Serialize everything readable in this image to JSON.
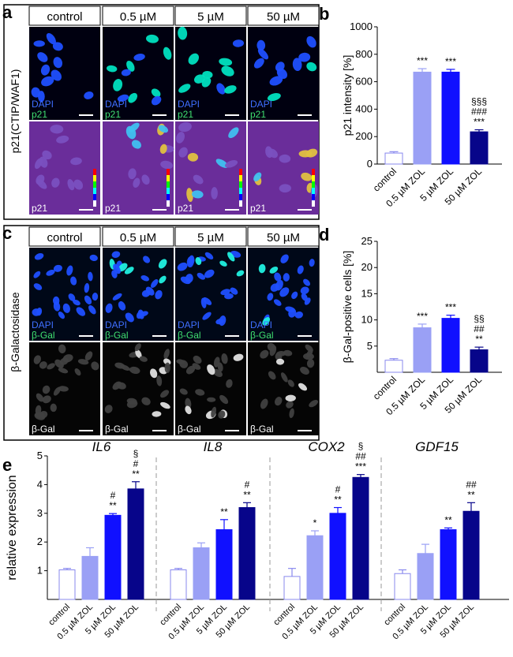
{
  "panel_letters": {
    "a": "a",
    "b": "b",
    "c": "c",
    "d": "d",
    "e": "e"
  },
  "micrographs": {
    "column_headers": [
      "control",
      "0.5 µM",
      "5 µM",
      "50 µM"
    ],
    "a": {
      "row_label": "p21(CTIP/WAF1)",
      "top_labels": {
        "line1": "DAPI",
        "line2": "p21"
      },
      "bottom_label": "p21"
    },
    "c": {
      "row_label": "β-Galactosidase",
      "top_labels": {
        "line1": "DAPI",
        "line2": "β-Gal"
      },
      "bottom_label": "β-Gal"
    },
    "colors": {
      "dapi": "#1f4fff",
      "p21": "#00e0c0",
      "heatmap_bg": "#6a2d9a",
      "gal": "#38d060"
    }
  },
  "chart_data": [
    {
      "id": "b",
      "type": "bar",
      "title": "",
      "xlabel": "",
      "ylabel": "p21 intensity [%]",
      "ylim": [
        0,
        1000
      ],
      "yticks": [
        "0",
        "200",
        "400",
        "600",
        "800",
        "1000"
      ],
      "categories": [
        "control",
        "0.5 µM ZOL",
        "5 µM ZOL",
        "50 µM ZOL"
      ],
      "values": [
        80,
        670,
        670,
        235
      ],
      "errors": [
        10,
        25,
        20,
        15
      ],
      "annotations": [
        [
          ""
        ],
        [
          "***"
        ],
        [
          "***"
        ],
        [
          "§§§",
          "###",
          "***"
        ]
      ],
      "grid": false
    },
    {
      "id": "d",
      "type": "bar",
      "title": "",
      "xlabel": "",
      "ylabel": "β-Gal-positive cells [%]",
      "ylim": [
        0,
        25
      ],
      "yticks": [
        "5",
        "10",
        "15",
        "20",
        "25"
      ],
      "categories": [
        "control",
        "0.5 µM ZOL",
        "5 µM ZOL",
        "50 µM ZOL"
      ],
      "values": [
        2.3,
        8.5,
        10.3,
        4.3
      ],
      "errors": [
        0.3,
        0.7,
        0.6,
        0.5
      ],
      "annotations": [
        [
          ""
        ],
        [
          "***"
        ],
        [
          "***"
        ],
        [
          "§§",
          "##",
          "**"
        ]
      ],
      "grid": false
    },
    {
      "id": "e",
      "type": "bar",
      "title": "",
      "xlabel": "",
      "ylabel": "relative expression",
      "ylim": [
        0,
        5
      ],
      "yticks": [
        "1",
        "2",
        "3",
        "4",
        "5"
      ],
      "groups": [
        {
          "name": "IL6",
          "categories": [
            "control",
            "0.5 µM ZOL",
            "5 µM ZOL",
            "50 µM ZOL"
          ],
          "values": [
            1.03,
            1.5,
            2.93,
            3.85
          ],
          "errors": [
            0.05,
            0.3,
            0.06,
            0.25
          ],
          "annotations": [
            [
              ""
            ],
            [
              ""
            ],
            [
              "#",
              "**"
            ],
            [
              "§",
              "#",
              "**"
            ]
          ]
        },
        {
          "name": "IL8",
          "categories": [
            "control",
            "0.5 µM ZOL",
            "5 µM ZOL",
            "50 µM ZOL"
          ],
          "values": [
            1.03,
            1.8,
            2.43,
            3.2
          ],
          "errors": [
            0.05,
            0.17,
            0.35,
            0.17
          ],
          "annotations": [
            [
              ""
            ],
            [
              ""
            ],
            [
              "**"
            ],
            [
              "#",
              "**"
            ]
          ]
        },
        {
          "name": "COX2",
          "categories": [
            "control",
            "0.5 µM ZOL",
            "5 µM ZOL",
            "50 µM ZOL"
          ],
          "values": [
            0.8,
            2.22,
            3.0,
            4.25
          ],
          "errors": [
            0.28,
            0.17,
            0.2,
            0.1
          ],
          "annotations": [
            [
              ""
            ],
            [
              "*"
            ],
            [
              "#",
              "**"
            ],
            [
              "§",
              "##",
              "***"
            ]
          ]
        },
        {
          "name": "GDF15",
          "categories": [
            "control",
            "0.5 µM ZOL",
            "5 µM ZOL",
            "50 µM ZOL"
          ],
          "values": [
            0.9,
            1.6,
            2.43,
            3.07
          ],
          "errors": [
            0.13,
            0.32,
            0.06,
            0.3
          ],
          "annotations": [
            [
              ""
            ],
            [
              ""
            ],
            [
              "**"
            ],
            [
              "##",
              "**"
            ]
          ]
        }
      ],
      "grid": false
    }
  ],
  "colors": {
    "control": "#ffffff",
    "c05": "#9aa0f5",
    "c5": "#1010ff",
    "c50": "#07058a",
    "control_stroke": "#8888ee"
  }
}
